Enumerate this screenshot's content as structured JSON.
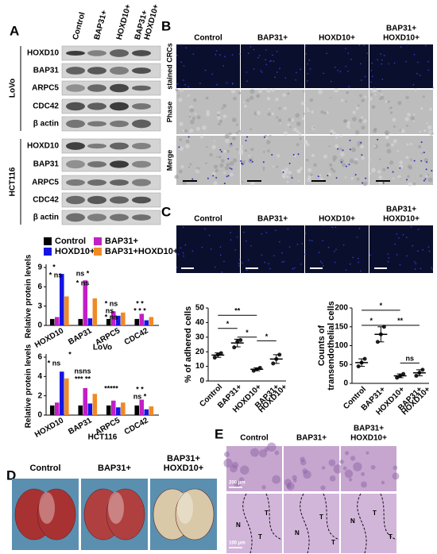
{
  "panel_a": {
    "label": "A",
    "columns": [
      "Control",
      "BAP31+",
      "HOXD10+",
      [
        "BAP31+",
        "HOXD10+"
      ]
    ],
    "lovo_label": "LoVo",
    "hct116_label": "HCT116",
    "lovo_rows": [
      "HOXD10",
      "BAP31",
      "ARPC5",
      "CDC42",
      "β actin"
    ],
    "hct116_rows": [
      "HOXD10",
      "BAP31",
      "ARPC5",
      "CDC42",
      "β actin"
    ],
    "charts": [
      {
        "type": "bar",
        "ylabel": "Relative  protein levels",
        "xlabel": "LoVo",
        "categories": [
          "HOXD10",
          "BAP31",
          "ARPC5",
          "CDC42"
        ],
        "series": [
          {
            "name": "Control",
            "color": "#000000",
            "values": [
              1,
              1,
              1,
              1
            ]
          },
          {
            "name": "BAP31+",
            "color": "#c21fc6",
            "values": [
              1.3,
              7,
              2.2,
              1.8
            ]
          },
          {
            "name": "HOXD10+",
            "color": "#1414e6",
            "values": [
              8,
              1.1,
              1.5,
              0.8
            ]
          },
          {
            "name": "BAP31+HOXD10+",
            "color": "#f08a24",
            "values": [
              4.5,
              4.2,
              2,
              1.3
            ]
          }
        ],
        "ylim": [
          0,
          9
        ],
        "yticks": [
          0,
          3,
          6,
          9
        ],
        "annotations": [
          "*",
          "* ns",
          "ns *",
          "* ns",
          "* ns",
          "ns",
          "* ns",
          "* *",
          "* * *"
        ]
      },
      {
        "type": "bar",
        "ylabel": "Relative  protein levels",
        "xlabel": "HCT116",
        "categories": [
          "HOXD10",
          "BAP31",
          "ARPC5",
          "CDC42"
        ],
        "series": [
          {
            "name": "Control",
            "color": "#000000",
            "values": [
              1,
              1,
              1,
              1
            ]
          },
          {
            "name": "BAP31+",
            "color": "#c21fc6",
            "values": [
              1.3,
              2.8,
              1.5,
              1.6
            ]
          },
          {
            "name": "HOXD10+",
            "color": "#1414e6",
            "values": [
              4.5,
              1.2,
              0.8,
              0.6
            ]
          },
          {
            "name": "BAP31+HOXD10+",
            "color": "#f08a24",
            "values": [
              3.8,
              2.2,
              1.3,
              0.9
            ]
          }
        ],
        "ylim": [
          0,
          6
        ],
        "yticks": [
          0,
          2,
          4,
          6
        ],
        "annotations": [
          "*",
          "* ns",
          "nsns",
          "*** **",
          "*****",
          "* *",
          "ns *"
        ]
      }
    ]
  },
  "panel_b": {
    "label": "B",
    "columns": [
      "Control",
      "BAP31+",
      "HOXD10+",
      [
        "BAP31+",
        "HOXD10+"
      ]
    ],
    "rows": [
      "stained CRCs",
      "Phase",
      "Merge"
    ]
  },
  "panel_c": {
    "label": "C",
    "columns": [
      "Control",
      "BAP31+",
      "HOXD10+",
      [
        "BAP31+",
        "HOXD10+"
      ]
    ],
    "charts": [
      {
        "type": "dot",
        "ylabel": "% of adhered cells",
        "categories": [
          "Control",
          "BAP31+",
          "HOXD10+",
          [
            "BAP31+",
            "HOXD10+"
          ]
        ],
        "points": [
          [
            16,
            18,
            19
          ],
          [
            23,
            27,
            28
          ],
          [
            7,
            8,
            9
          ],
          [
            12,
            15,
            18
          ]
        ],
        "values": [
          17.7,
          26,
          8,
          15
        ],
        "errors": [
          1.5,
          2.6,
          1,
          3
        ],
        "ylim": [
          0,
          50
        ],
        "yticks": [
          0,
          10,
          20,
          30,
          40,
          50
        ],
        "annotations": [
          "**",
          "*",
          "*",
          "*"
        ]
      },
      {
        "type": "dot",
        "ylabel": [
          "Counts of",
          "transendothelial cells"
        ],
        "categories": [
          "Control",
          "BAP31+",
          "HOXD10+",
          [
            "BAP31+",
            "HOXD10+"
          ]
        ],
        "points": [
          [
            45,
            55,
            65
          ],
          [
            110,
            130,
            150
          ],
          [
            15,
            20,
            25
          ],
          [
            20,
            28,
            36
          ]
        ],
        "values": [
          55,
          130,
          20,
          28
        ],
        "errors": [
          10,
          20,
          5,
          8
        ],
        "ylim": [
          0,
          200
        ],
        "yticks": [
          0,
          50,
          100,
          150,
          200
        ],
        "annotations": [
          "*",
          "*",
          "**",
          "ns"
        ]
      }
    ]
  },
  "panel_d": {
    "label": "D",
    "columns": [
      "Control",
      "BAP31+",
      [
        "BAP31+",
        "HOXD10+"
      ]
    ]
  },
  "panel_e": {
    "label": "E",
    "columns": [
      "Control",
      "BAP31+",
      [
        "BAP31+",
        "HOXD10+"
      ]
    ],
    "scale_top": "200 μm",
    "scale_bottom": "100 μm",
    "regions": [
      "N",
      "T",
      "T",
      "N",
      "T",
      "T",
      "N",
      "T",
      "T"
    ]
  }
}
